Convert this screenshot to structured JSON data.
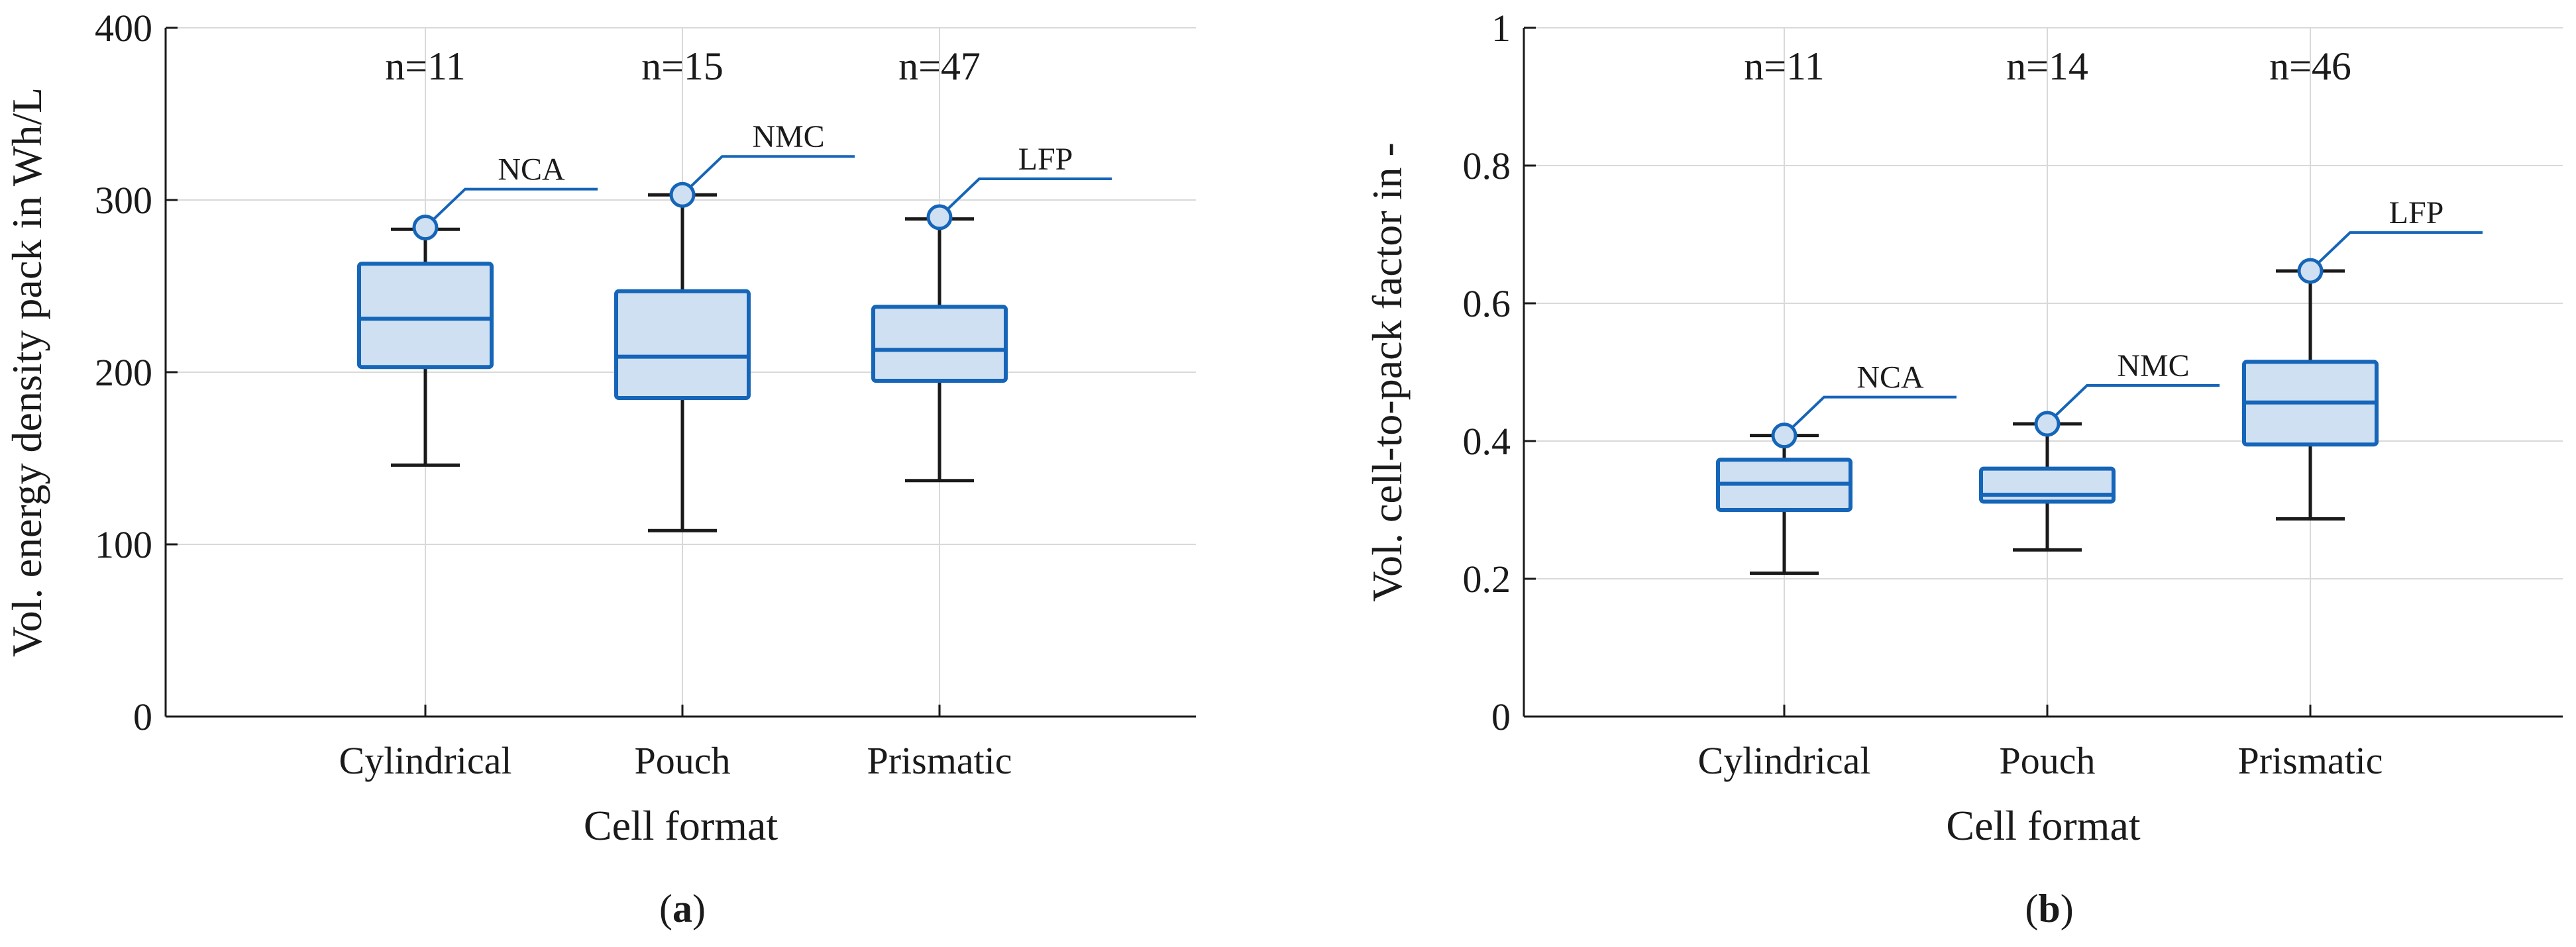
{
  "colors": {
    "box_edge": "#1565b8",
    "box_fill": "#cfe0f2",
    "whisker": "#1a1a1a",
    "grid": "#d9d9d9",
    "axis": "#1a1a1a"
  },
  "chart_data": [
    {
      "type": "box",
      "panel": "(a)",
      "panel_letter": "a",
      "xlabel": "Cell format",
      "ylabel": "Vol. energy density pack in Wh/L",
      "ylim": [
        0,
        400
      ],
      "yticks": [
        0,
        100,
        200,
        300,
        400
      ],
      "grid": true,
      "categories": [
        "Cylindrical",
        "Pouch",
        "Prismatic"
      ],
      "counts": [
        "n=11",
        "n=15",
        "n=47"
      ],
      "boxes": [
        {
          "category": "Cylindrical",
          "min": 146,
          "q1": 203,
          "median": 231,
          "q3": 263,
          "max": 283
        },
        {
          "category": "Pouch",
          "min": 108,
          "q1": 185,
          "median": 209,
          "q3": 247,
          "max": 303
        },
        {
          "category": "Prismatic",
          "min": 137,
          "q1": 195,
          "median": 213,
          "q3": 238,
          "max": 289
        }
      ],
      "annotations": [
        {
          "category": "Cylindrical",
          "label": "NCA",
          "value": 284
        },
        {
          "category": "Pouch",
          "label": "NMC",
          "value": 303
        },
        {
          "category": "Prismatic",
          "label": "LFP",
          "value": 290
        }
      ]
    },
    {
      "type": "box",
      "panel": "(b)",
      "panel_letter": "b",
      "xlabel": "Cell format",
      "ylabel": "Vol. cell-to-pack factor in -",
      "ylim": [
        0,
        1
      ],
      "yticks": [
        0,
        0.2,
        0.4,
        0.6,
        0.8,
        1
      ],
      "ytick_labels": [
        "0",
        "0.2",
        "0.4",
        "0.6",
        "0.8",
        "1"
      ],
      "grid": true,
      "categories": [
        "Cylindrical",
        "Pouch",
        "Prismatic"
      ],
      "counts": [
        "n=11",
        "n=14",
        "n=46"
      ],
      "boxes": [
        {
          "category": "Cylindrical",
          "min": 0.208,
          "q1": 0.3,
          "median": 0.338,
          "q3": 0.373,
          "max": 0.408
        },
        {
          "category": "Pouch",
          "min": 0.242,
          "q1": 0.312,
          "median": 0.322,
          "q3": 0.36,
          "max": 0.425
        },
        {
          "category": "Prismatic",
          "min": 0.287,
          "q1": 0.395,
          "median": 0.456,
          "q3": 0.515,
          "max": 0.647
        }
      ],
      "annotations": [
        {
          "category": "Cylindrical",
          "label": "NCA",
          "value": 0.408
        },
        {
          "category": "Pouch",
          "label": "NMC",
          "value": 0.425
        },
        {
          "category": "Prismatic",
          "label": "LFP",
          "value": 0.647
        }
      ]
    }
  ]
}
